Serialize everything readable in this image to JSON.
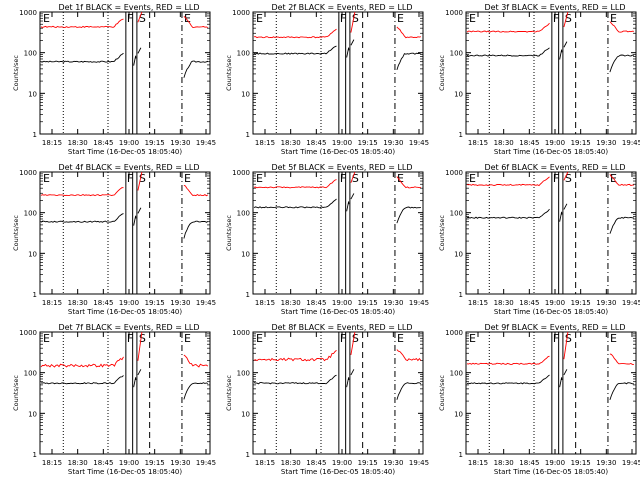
{
  "chart_data": [
    {
      "type": "line",
      "title": "Det 1f BLACK = Events, RED = LLD",
      "xlabel": "Start Time (16-Dec-05 18:05:40)",
      "ylabel": "Counts/sec",
      "x_ticks": [
        "18:15",
        "18:30",
        "18:45",
        "19:00",
        "19:15",
        "19:30",
        "19:45"
      ],
      "y_ticks": [
        "1",
        "10",
        "100",
        "1000"
      ],
      "yscale": "log",
      "ylim": [
        1,
        1000
      ],
      "series": [
        {
          "name": "Events",
          "color": "#000000",
          "base": 60
        },
        {
          "name": "LLD",
          "color": "#ff0000",
          "base": 430
        }
      ],
      "annotations": [
        "E",
        "F",
        "S",
        "E"
      ]
    },
    {
      "type": "line",
      "title": "Det 2f BLACK = Events, RED = LLD",
      "xlabel": "Start Time (16-Dec-05 18:05:40)",
      "ylabel": "Counts/sec",
      "x_ticks": [
        "18:15",
        "18:30",
        "18:45",
        "19:00",
        "19:15",
        "19:30",
        "19:45"
      ],
      "y_ticks": [
        "1",
        "10",
        "100",
        "1000"
      ],
      "yscale": "log",
      "ylim": [
        1,
        1000
      ],
      "series": [
        {
          "name": "Events",
          "color": "#000000",
          "base": 95
        },
        {
          "name": "LLD",
          "color": "#ff0000",
          "base": 240
        }
      ],
      "annotations": [
        "E",
        "F",
        "S",
        "E"
      ]
    },
    {
      "type": "line",
      "title": "Det 3f BLACK = Events, RED = LLD",
      "xlabel": "Start Time (16-Dec-05 18:05:40)",
      "ylabel": "Counts/sec",
      "x_ticks": [
        "18:15",
        "18:30",
        "18:45",
        "19:00",
        "19:15",
        "19:30",
        "19:45"
      ],
      "y_ticks": [
        "1",
        "10",
        "100",
        "1000"
      ],
      "yscale": "log",
      "ylim": [
        1,
        1000
      ],
      "series": [
        {
          "name": "Events",
          "color": "#000000",
          "base": 85
        },
        {
          "name": "LLD",
          "color": "#ff0000",
          "base": 330
        }
      ],
      "annotations": [
        "E",
        "F",
        "S",
        "E"
      ]
    },
    {
      "type": "line",
      "title": "Det 4f BLACK = Events, RED = LLD",
      "xlabel": "Start Time (16-Dec-05 18:05:40)",
      "ylabel": "Counts/sec",
      "x_ticks": [
        "18:15",
        "18:30",
        "18:45",
        "19:00",
        "19:15",
        "19:30",
        "19:45"
      ],
      "y_ticks": [
        "1",
        "10",
        "100",
        "1000"
      ],
      "yscale": "log",
      "ylim": [
        1,
        1000
      ],
      "series": [
        {
          "name": "Events",
          "color": "#000000",
          "base": 60
        },
        {
          "name": "LLD",
          "color": "#ff0000",
          "base": 270
        }
      ],
      "annotations": [
        "E",
        "F",
        "S",
        "E"
      ]
    },
    {
      "type": "line",
      "title": "Det 5f BLACK = Events, RED = LLD",
      "xlabel": "Start Time (16-Dec-05 18:05:40)",
      "ylabel": "Counts/sec",
      "x_ticks": [
        "18:15",
        "18:30",
        "18:45",
        "19:00",
        "19:15",
        "19:30",
        "19:45"
      ],
      "y_ticks": [
        "1",
        "10",
        "100",
        "1000"
      ],
      "yscale": "log",
      "ylim": [
        1,
        1000
      ],
      "series": [
        {
          "name": "Events",
          "color": "#000000",
          "base": 135
        },
        {
          "name": "LLD",
          "color": "#ff0000",
          "base": 420
        }
      ],
      "annotations": [
        "E",
        "F",
        "S",
        "E"
      ]
    },
    {
      "type": "line",
      "title": "Det 6f BLACK = Events, RED = LLD",
      "xlabel": "Start Time (16-Dec-05 18:05:40)",
      "ylabel": "Counts/sec",
      "x_ticks": [
        "18:15",
        "18:30",
        "18:45",
        "19:00",
        "19:15",
        "19:30",
        "19:45"
      ],
      "y_ticks": [
        "1",
        "10",
        "100",
        "1000"
      ],
      "yscale": "log",
      "ylim": [
        1,
        1000
      ],
      "series": [
        {
          "name": "Events",
          "color": "#000000",
          "base": 75
        },
        {
          "name": "LLD",
          "color": "#ff0000",
          "base": 480
        }
      ],
      "annotations": [
        "E",
        "F",
        "S",
        "E"
      ]
    },
    {
      "type": "line",
      "title": "Det 7f BLACK = Events, RED = LLD",
      "xlabel": "Start Time (16-Dec-05 18:05:40)",
      "ylabel": "Counts/sec",
      "x_ticks": [
        "18:15",
        "18:30",
        "18:45",
        "19:00",
        "19:15",
        "19:30",
        "19:45"
      ],
      "y_ticks": [
        "1",
        "10",
        "100",
        "1000"
      ],
      "yscale": "log",
      "ylim": [
        1,
        1000
      ],
      "series": [
        {
          "name": "Events",
          "color": "#000000",
          "base": 55
        },
        {
          "name": "LLD",
          "color": "#ff0000",
          "base": 150
        }
      ],
      "annotations": [
        "E",
        "F",
        "S",
        "E"
      ]
    },
    {
      "type": "line",
      "title": "Det 8f BLACK = Events, RED = LLD",
      "xlabel": "Start Time (16-Dec-05 18:05:40)",
      "ylabel": "Counts/sec",
      "x_ticks": [
        "18:15",
        "18:30",
        "18:45",
        "19:00",
        "19:15",
        "19:30",
        "19:45"
      ],
      "y_ticks": [
        "1",
        "10",
        "100",
        "1000"
      ],
      "yscale": "log",
      "ylim": [
        1,
        1000
      ],
      "series": [
        {
          "name": "Events",
          "color": "#000000",
          "base": 55
        },
        {
          "name": "LLD",
          "color": "#ff0000",
          "base": 210
        }
      ],
      "annotations": [
        "E",
        "F",
        "S",
        "E"
      ]
    },
    {
      "type": "line",
      "title": "Det 9f BLACK = Events, RED = LLD",
      "xlabel": "Start Time (16-Dec-05 18:05:40)",
      "ylabel": "Counts/sec",
      "x_ticks": [
        "18:15",
        "18:30",
        "18:45",
        "19:00",
        "19:15",
        "19:30",
        "19:45"
      ],
      "y_ticks": [
        "1",
        "10",
        "100",
        "1000"
      ],
      "yscale": "log",
      "ylim": [
        1,
        1000
      ],
      "series": [
        {
          "name": "Events",
          "color": "#000000",
          "base": 55
        },
        {
          "name": "LLD",
          "color": "#ff0000",
          "base": 165
        }
      ],
      "annotations": [
        "E",
        "F",
        "S",
        "E"
      ]
    }
  ]
}
